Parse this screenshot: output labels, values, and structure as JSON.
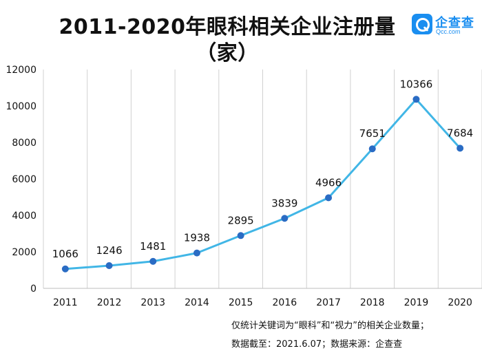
{
  "title_line1": "2011-2020年眼科相关企业注册量",
  "title_line2": "（家）",
  "logo": {
    "name_cn": "企查查",
    "name_en": "Qcc.com",
    "color": "#1a8ef0"
  },
  "notes": [
    "仅统计关键词为“眼科”和“视力”的相关企业数量；",
    "数据截至：2021.6.07；数据来源：企查查"
  ],
  "colors": {
    "line": "#41b6e6",
    "marker": "#2a6cc4",
    "grid": "#d0d0d0"
  },
  "chart_data": {
    "type": "line",
    "title": "2011-2020年眼科相关企业注册量（家）",
    "categories": [
      "2011",
      "2012",
      "2013",
      "2014",
      "2015",
      "2016",
      "2017",
      "2018",
      "2019",
      "2020"
    ],
    "series": [
      {
        "values": [
          1066,
          1246,
          1481,
          1938,
          2895,
          3839,
          4966,
          7651,
          10366,
          7684
        ]
      }
    ],
    "y_ticks": [
      "0",
      "2000",
      "4000",
      "6000",
      "8000",
      "10000",
      "12000"
    ],
    "ylim": [
      0,
      12000
    ],
    "data_labels": [
      "1066",
      "1246",
      "1481",
      "1938",
      "2895",
      "3839",
      "4966",
      "7651",
      "10366",
      "7684"
    ],
    "grid": "vertical",
    "legend": "none"
  }
}
